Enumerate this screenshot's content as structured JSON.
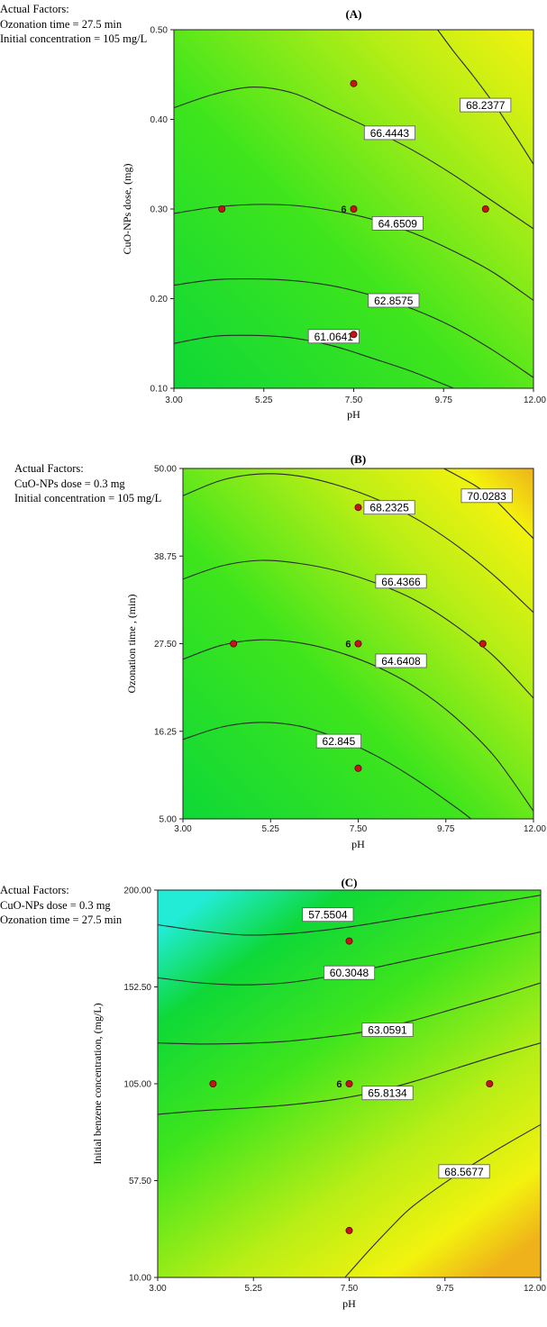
{
  "figure": {
    "panels": [
      {
        "id": "A",
        "actual_factors": [
          "Actual Factors:",
          "Ozonation time = 27.5 min",
          "Initial concentration = 105 mg/L"
        ],
        "gradient": "a"
      },
      {
        "id": "B",
        "actual_factors": [
          "Actual Factors:",
          "CuO-NPs dose = 0.3 mg",
          "Initial concentration = 105 mg/L"
        ],
        "gradient": "b"
      },
      {
        "id": "C",
        "actual_factors": [
          "Actual Factors:",
          "CuO-NPs dose = 0.3 mg",
          "Ozonation time = 27.5 min"
        ],
        "gradient": "c"
      }
    ]
  },
  "colors": {
    "deep_green": "#0ed838",
    "green": "#3fe51c",
    "yellow_green": "#b9ee16",
    "yellow": "#f2f20e",
    "orange": "#f0b21a",
    "cyan": "#22ecd6",
    "design_point": "#c41414",
    "contour_line": "#2a2a2a"
  },
  "chart_data": [
    {
      "type": "contour",
      "title": "(A)",
      "xlabel": "pH",
      "ylabel": "CuO-NPs dose, (mg)",
      "xlim": [
        3.0,
        12.0
      ],
      "ylim": [
        0.1,
        0.5
      ],
      "xticks": [
        "3.00",
        "5.25",
        "7.50",
        "9.75",
        "12.00"
      ],
      "yticks": [
        "0.10",
        "0.20",
        "0.30",
        "0.40",
        "0.50"
      ],
      "grid": false,
      "contours": [
        {
          "label": "61.0641",
          "label_at": [
            7.0,
            0.158
          ],
          "points": [
            [
              3.0,
              0.15
            ],
            [
              4.0,
              0.158
            ],
            [
              5.0,
              0.159
            ],
            [
              6.0,
              0.156
            ],
            [
              7.0,
              0.147
            ],
            [
              8.0,
              0.133
            ],
            [
              9.0,
              0.118
            ],
            [
              10.0,
              0.1
            ]
          ]
        },
        {
          "label": "62.8575",
          "label_at": [
            8.5,
            0.198
          ],
          "points": [
            [
              3.0,
              0.215
            ],
            [
              4.0,
              0.221
            ],
            [
              5.0,
              0.222
            ],
            [
              6.0,
              0.22
            ],
            [
              7.0,
              0.214
            ],
            [
              8.0,
              0.203
            ],
            [
              9.0,
              0.188
            ],
            [
              10.0,
              0.168
            ],
            [
              11.0,
              0.142
            ],
            [
              12.0,
              0.112
            ]
          ]
        },
        {
          "label": "64.6509",
          "label_at": [
            8.6,
            0.284
          ],
          "points": [
            [
              3.0,
              0.295
            ],
            [
              4.0,
              0.302
            ],
            [
              5.0,
              0.305
            ],
            [
              6.0,
              0.304
            ],
            [
              7.0,
              0.298
            ],
            [
              8.0,
              0.288
            ],
            [
              9.0,
              0.273
            ],
            [
              10.0,
              0.253
            ],
            [
              11.0,
              0.229
            ],
            [
              12.0,
              0.198
            ]
          ]
        },
        {
          "label": "66.4443",
          "label_at": [
            8.4,
            0.385
          ],
          "points": [
            [
              3.0,
              0.413
            ],
            [
              4.0,
              0.428
            ],
            [
              5.0,
              0.436
            ],
            [
              6.0,
              0.429
            ],
            [
              7.0,
              0.409
            ],
            [
              8.0,
              0.388
            ],
            [
              9.0,
              0.365
            ],
            [
              10.0,
              0.338
            ],
            [
              11.0,
              0.308
            ],
            [
              12.0,
              0.278
            ]
          ]
        },
        {
          "label": "68.2377",
          "label_at": [
            10.8,
            0.416
          ],
          "points": [
            [
              9.6,
              0.5
            ],
            [
              10.0,
              0.476
            ],
            [
              10.5,
              0.448
            ],
            [
              11.0,
              0.418
            ],
            [
              11.5,
              0.385
            ],
            [
              12.0,
              0.35
            ]
          ]
        }
      ],
      "design_points": [
        {
          "x": 4.2,
          "y": 0.3,
          "label": ""
        },
        {
          "x": 7.5,
          "y": 0.44,
          "label": ""
        },
        {
          "x": 7.5,
          "y": 0.3,
          "label": "6"
        },
        {
          "x": 10.8,
          "y": 0.3,
          "label": ""
        },
        {
          "x": 7.5,
          "y": 0.16,
          "label": ""
        }
      ]
    },
    {
      "type": "contour",
      "title": "(B)",
      "xlabel": "pH",
      "ylabel": "Ozonation time , (min)",
      "xlim": [
        3.0,
        12.0
      ],
      "ylim": [
        5.0,
        50.0
      ],
      "xticks": [
        "3.00",
        "5.25",
        "7.50",
        "9.75",
        "12.00"
      ],
      "yticks": [
        "5.00",
        "16.25",
        "27.50",
        "38.75",
        "50.00"
      ],
      "grid": false,
      "contours": [
        {
          "label": "62.845",
          "label_at": [
            7.0,
            15.0
          ],
          "points": [
            [
              3.0,
              15.2
            ],
            [
              4.0,
              16.8
            ],
            [
              5.0,
              17.4
            ],
            [
              6.0,
              16.9
            ],
            [
              7.0,
              15.3
            ],
            [
              8.0,
              13.0
            ],
            [
              9.0,
              10.0
            ],
            [
              10.0,
              6.5
            ],
            [
              10.4,
              5.0
            ]
          ]
        },
        {
          "label": "64.6408",
          "label_at": [
            8.6,
            25.3
          ],
          "points": [
            [
              3.0,
              25.5
            ],
            [
              4.0,
              27.3
            ],
            [
              5.0,
              28.0
            ],
            [
              6.0,
              27.6
            ],
            [
              7.0,
              26.4
            ],
            [
              8.0,
              24.5
            ],
            [
              9.0,
              21.8
            ],
            [
              10.0,
              18.0
            ],
            [
              11.0,
              13.0
            ],
            [
              12.0,
              6.0
            ]
          ]
        },
        {
          "label": "66.4366",
          "label_at": [
            8.6,
            35.5
          ],
          "points": [
            [
              3.0,
              35.8
            ],
            [
              4.0,
              37.5
            ],
            [
              5.0,
              38.2
            ],
            [
              6.0,
              37.8
            ],
            [
              7.0,
              36.8
            ],
            [
              8.0,
              35.2
            ],
            [
              9.0,
              33.0
            ],
            [
              10.0,
              29.8
            ],
            [
              11.0,
              25.8
            ],
            [
              12.0,
              20.5
            ]
          ]
        },
        {
          "label": "68.2325",
          "label_at": [
            8.3,
            45.0
          ],
          "points": [
            [
              3.0,
              46.5
            ],
            [
              4.0,
              48.5
            ],
            [
              5.0,
              49.3
            ],
            [
              6.0,
              49.0
            ],
            [
              7.0,
              47.8
            ],
            [
              8.0,
              46.0
            ],
            [
              9.0,
              43.5
            ],
            [
              10.0,
              40.2
            ],
            [
              11.0,
              36.2
            ],
            [
              12.0,
              31.5
            ]
          ]
        },
        {
          "label": "70.0283",
          "label_at": [
            10.8,
            46.5
          ],
          "points": [
            [
              9.7,
              50.0
            ],
            [
              10.5,
              47.8
            ],
            [
              11.0,
              46.0
            ],
            [
              11.5,
              43.5
            ],
            [
              12.0,
              41.0
            ]
          ]
        }
      ],
      "design_points": [
        {
          "x": 4.3,
          "y": 27.5,
          "label": ""
        },
        {
          "x": 7.5,
          "y": 45.0,
          "label": ""
        },
        {
          "x": 7.5,
          "y": 27.5,
          "label": "6"
        },
        {
          "x": 10.7,
          "y": 27.5,
          "label": ""
        },
        {
          "x": 7.5,
          "y": 11.5,
          "label": ""
        }
      ]
    },
    {
      "type": "contour",
      "title": "(C)",
      "xlabel": "pH",
      "ylabel": "Initial benzene concentration, (mg/L)",
      "xlim": [
        3.0,
        12.0
      ],
      "ylim": [
        10.0,
        200.0
      ],
      "xticks": [
        "3.00",
        "5.25",
        "7.50",
        "9.75",
        "12.00"
      ],
      "yticks": [
        "10.00",
        "57.50",
        "105.00",
        "152.50",
        "200.00"
      ],
      "grid": false,
      "contours": [
        {
          "label": "57.5504",
          "label_at": [
            7.0,
            188.0
          ],
          "points": [
            [
              3.0,
              183.0
            ],
            [
              4.0,
              180.0
            ],
            [
              5.0,
              178.0
            ],
            [
              6.0,
              178.5
            ],
            [
              7.0,
              180.5
            ],
            [
              8.0,
              183.5
            ],
            [
              9.0,
              187.0
            ],
            [
              10.0,
              190.5
            ],
            [
              11.0,
              194.0
            ],
            [
              12.0,
              197.5
            ]
          ]
        },
        {
          "label": "60.3048",
          "label_at": [
            7.5,
            159.5
          ],
          "points": [
            [
              3.0,
              157.0
            ],
            [
              4.0,
              154.5
            ],
            [
              5.0,
              153.5
            ],
            [
              6.0,
              154.5
            ],
            [
              7.0,
              157.5
            ],
            [
              8.0,
              161.5
            ],
            [
              9.0,
              166.0
            ],
            [
              10.0,
              170.5
            ],
            [
              11.0,
              175.0
            ],
            [
              12.0,
              179.5
            ]
          ]
        },
        {
          "label": "63.0591",
          "label_at": [
            8.4,
            131.5
          ],
          "points": [
            [
              3.0,
              125.0
            ],
            [
              4.0,
              124.5
            ],
            [
              5.0,
              124.8
            ],
            [
              6.0,
              125.8
            ],
            [
              7.0,
              128.0
            ],
            [
              8.0,
              131.0
            ],
            [
              9.0,
              136.0
            ],
            [
              10.0,
              142.0
            ],
            [
              11.0,
              148.0
            ],
            [
              12.0,
              154.5
            ]
          ]
        },
        {
          "label": "65.8134",
          "label_at": [
            8.4,
            100.5
          ],
          "points": [
            [
              3.0,
              90.0
            ],
            [
              4.0,
              91.8
            ],
            [
              5.0,
              93.0
            ],
            [
              6.0,
              94.5
            ],
            [
              7.0,
              96.8
            ],
            [
              8.0,
              100.5
            ],
            [
              9.0,
              106.0
            ],
            [
              10.0,
              112.5
            ],
            [
              11.0,
              119.0
            ],
            [
              12.0,
              125.0
            ]
          ]
        },
        {
          "label": "68.5677",
          "label_at": [
            10.2,
            62.0
          ],
          "points": [
            [
              7.4,
              10.0
            ],
            [
              8.0,
              24.0
            ],
            [
              8.5,
              35.0
            ],
            [
              9.0,
              45.0
            ],
            [
              10.0,
              60.0
            ],
            [
              11.0,
              73.0
            ],
            [
              12.0,
              85.0
            ]
          ]
        }
      ],
      "design_points": [
        {
          "x": 4.3,
          "y": 105.0,
          "label": ""
        },
        {
          "x": 7.5,
          "y": 175.0,
          "label": ""
        },
        {
          "x": 7.5,
          "y": 105.0,
          "label": "6"
        },
        {
          "x": 10.8,
          "y": 105.0,
          "label": ""
        },
        {
          "x": 7.5,
          "y": 33.0,
          "label": ""
        }
      ]
    }
  ]
}
